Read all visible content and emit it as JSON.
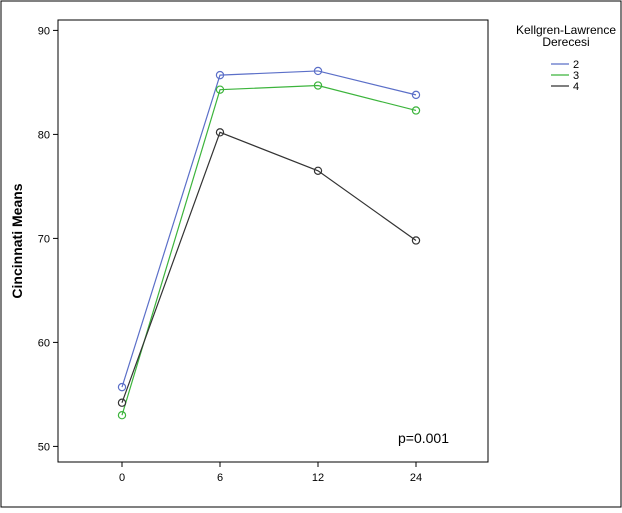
{
  "chart_data": {
    "type": "line",
    "title": "",
    "xlabel": "",
    "ylabel": "Cincinnati Means",
    "categories": [
      "0",
      "6",
      "12",
      "24"
    ],
    "ylim": [
      48.5,
      91
    ],
    "yticks": [
      50,
      60,
      70,
      80,
      90
    ],
    "grid": false,
    "legend": {
      "title": "Kellgren-Lawrence Derecesi",
      "placement": "top-right",
      "title_lines": [
        "Kellgren-Lawrence",
        "Derecesi"
      ]
    },
    "series": [
      {
        "name": "2",
        "color": "#5b6fc8",
        "values": [
          55.7,
          85.7,
          86.1,
          83.8
        ]
      },
      {
        "name": "3",
        "color": "#3cb43c",
        "values": [
          53.0,
          84.3,
          84.7,
          82.3
        ]
      },
      {
        "name": "4",
        "color": "#333333",
        "values": [
          54.2,
          80.2,
          76.5,
          69.8
        ]
      }
    ],
    "annotations": [
      {
        "text": "p=0.001"
      }
    ]
  }
}
